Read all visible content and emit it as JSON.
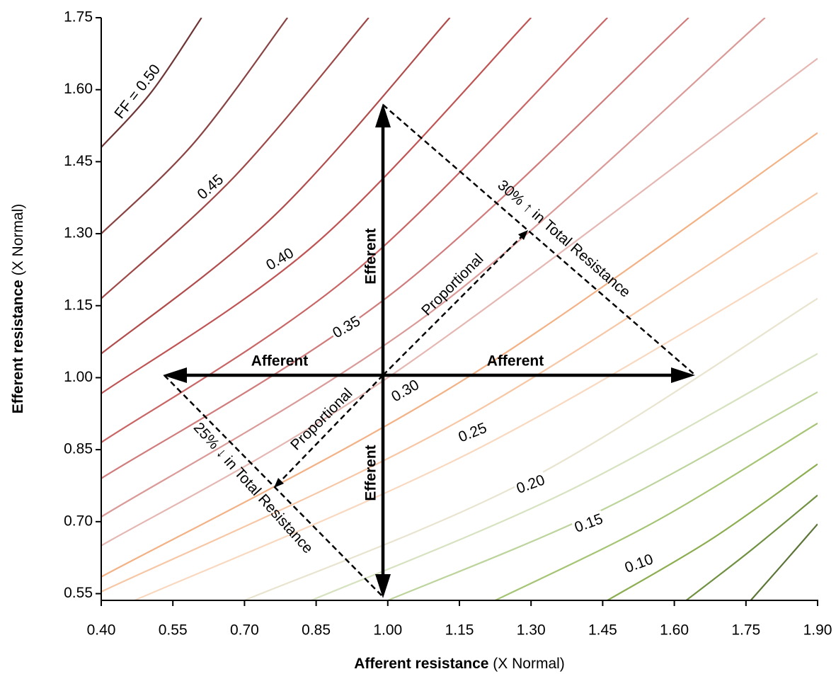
{
  "chart_data": {
    "type": "contour",
    "x_label": [
      "Afferent resistance",
      "(X Normal)"
    ],
    "y_label": [
      "Efferent resistance",
      "(X Normal)"
    ],
    "xlim": [
      0.4,
      1.9
    ],
    "ylim": [
      0.536,
      1.75
    ],
    "xticks": [
      {
        "value": 0.4,
        "label": "0.40"
      },
      0.55,
      {
        "value": 0.7,
        "label": "0.70"
      },
      0.85,
      {
        "value": 1,
        "label": "1.00"
      },
      1.15,
      {
        "value": 1.3,
        "label": "1.30"
      },
      1.45,
      {
        "value": 1.6,
        "label": "1.60"
      },
      1.75,
      {
        "value": 1.9,
        "label": "1.90"
      }
    ],
    "yticks": [
      0.55,
      {
        "value": 0.7,
        "label": "0.70"
      },
      0.85,
      {
        "value": 1,
        "label": "1.00"
      },
      1.15,
      {
        "value": 1.3,
        "label": "1.30"
      },
      1.45,
      {
        "value": 1.6,
        "label": "1.60"
      },
      1.75
    ],
    "contours": [
      {
        "label": "FF = 0.50",
        "color": "#6e3535",
        "x": [
          0.4,
          0.505,
          0.61
        ],
        "y": [
          1.48,
          1.595,
          1.75
        ]
      },
      {
        "color": "#8a4343",
        "x": [
          0.4,
          0.595,
          0.79
        ],
        "y": [
          1.3,
          1.49,
          1.75
        ]
      },
      {
        "label": "0.45",
        "color": "#9e4848",
        "x": [
          0.4,
          0.68,
          0.96
        ],
        "y": [
          1.165,
          1.42,
          1.75
        ]
      },
      {
        "color": "#b14c4c",
        "x": [
          0.4,
          0.765,
          1.13
        ],
        "y": [
          1.05,
          1.34,
          1.75
        ]
      },
      {
        "label": "0.40",
        "color": "#c05454",
        "x": [
          0.4,
          0.85,
          1.3
        ],
        "y": [
          0.967,
          1.28,
          1.75
        ]
      },
      {
        "color": "#c96565",
        "x": [
          0.4,
          0.93,
          1.46
        ],
        "y": [
          0.865,
          1.22,
          1.75
        ]
      },
      {
        "label": "0.35",
        "color": "#d17c7c",
        "x": [
          0.4,
          1.015,
          1.63
        ],
        "y": [
          0.79,
          1.18,
          1.75
        ]
      },
      {
        "color": "#da9a98",
        "x": [
          0.4,
          1.095,
          1.79
        ],
        "y": [
          0.71,
          1.14,
          1.75
        ]
      },
      {
        "label": "0.30",
        "color": "#e5b7b2",
        "x": [
          0.4,
          1.0,
          1.9
        ],
        "y": [
          0.65,
          1.0,
          1.665
        ]
      },
      {
        "color": "#f3b286",
        "x": [
          0.4,
          1.15,
          1.9
        ],
        "y": [
          0.585,
          0.99,
          1.51
        ]
      },
      {
        "label": "0.25",
        "color": "#f7c7a5",
        "x": [
          0.4,
          1.15,
          1.9
        ],
        "y": [
          0.554,
          0.91,
          1.385
        ]
      },
      {
        "color": "#f9d8c0",
        "x": [
          0.47,
          1.185,
          1.9
        ],
        "y": [
          0.536,
          0.85,
          1.26
        ]
      },
      {
        "label": "0.20",
        "color": "#e8e4cf",
        "x": [
          0.7,
          1.3,
          1.9
        ],
        "y": [
          0.536,
          0.79,
          1.165
        ]
      },
      {
        "color": "#d6e2c0",
        "x": [
          0.84,
          1.37,
          1.9
        ],
        "y": [
          0.536,
          0.76,
          1.05
        ]
      },
      {
        "label": "0.15",
        "color": "#bdd49c",
        "x": [
          1.0,
          1.45,
          1.9
        ],
        "y": [
          0.536,
          0.725,
          0.97
        ]
      },
      {
        "color": "#a5c574",
        "x": [
          1.225,
          1.56,
          1.9
        ],
        "y": [
          0.536,
          0.7,
          0.905
        ]
      },
      {
        "label": "0.10",
        "color": "#8cae51",
        "x": [
          1.46,
          1.68,
          1.9
        ],
        "y": [
          0.536,
          0.665,
          0.82
        ]
      },
      {
        "color": "#6f9141",
        "x": [
          1.625,
          1.76,
          1.9
        ],
        "y": [
          0.536,
          0.64,
          0.755
        ]
      },
      {
        "color": "#5a7536",
        "x": [
          1.76,
          1.83,
          1.9
        ],
        "y": [
          0.536,
          0.615,
          0.695
        ]
      }
    ],
    "annotations": [
      "Efferent",
      "Efferent",
      "Afferent",
      "Afferent",
      "Proportional",
      "Proportional",
      "30% ↑ in Total Resistance",
      "25% ↓ in Total Resistance"
    ]
  }
}
